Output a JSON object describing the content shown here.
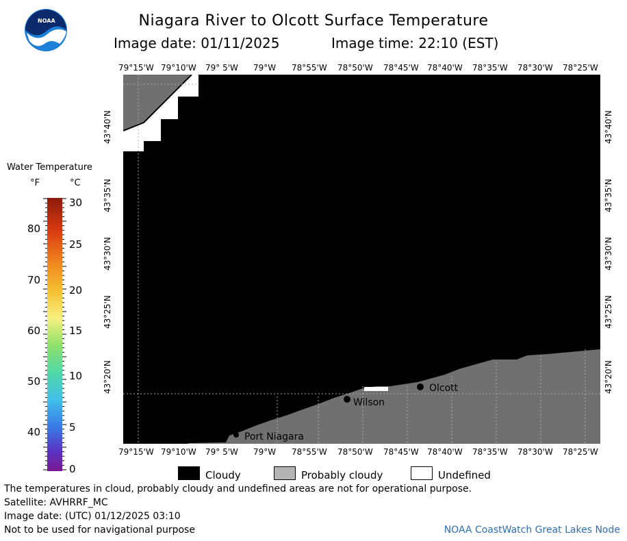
{
  "header": {
    "logo_text": "NOAA",
    "title": "Niagara River to Olcott Surface Temperature",
    "image_date": "Image date: 01/11/2025",
    "image_time": "Image time: 22:10 (EST)"
  },
  "map": {
    "lon_ticks": [
      "79°15'W",
      "79°10'W",
      "79° 5'W",
      "79°W",
      "78°55'W",
      "78°50'W",
      "78°45'W",
      "78°40'W",
      "78°35'W",
      "78°30'W",
      "78°25'W"
    ],
    "lat_ticks": [
      "43°40'N",
      "43°35'N",
      "43°30'N",
      "43°25'N",
      "43°20'N"
    ],
    "places": [
      {
        "name": "Olcott"
      },
      {
        "name": "Wilson"
      },
      {
        "name": "Port Niagara"
      }
    ],
    "colors": {
      "cloudy": "#000000",
      "probably_cloudy": "#707070",
      "undefined": "#ffffff",
      "grid": "#9a9a9a"
    }
  },
  "scale": {
    "title": "Water Temperature",
    "f_unit": "°F",
    "c_unit": "°C",
    "f_labels": [
      "80",
      "70",
      "60",
      "50",
      "40"
    ],
    "c_labels": [
      "30",
      "25",
      "20",
      "15",
      "10",
      "5",
      "0"
    ]
  },
  "legend": {
    "cloudy": "Cloudy",
    "probably_cloudy": "Probably cloudy",
    "undefined": "Undefined"
  },
  "footer": {
    "disclaimer": "The temperatures in cloud, probably cloudy and undefined areas are not for operational purpose.",
    "satellite": "Satellite: AVHRRF_MC",
    "utc_date": "Image date: (UTC) 01/12/2025  03:10",
    "nav_warning": "Not to be used for navigational purpose",
    "credit": "NOAA CoastWatch Great Lakes Node"
  }
}
